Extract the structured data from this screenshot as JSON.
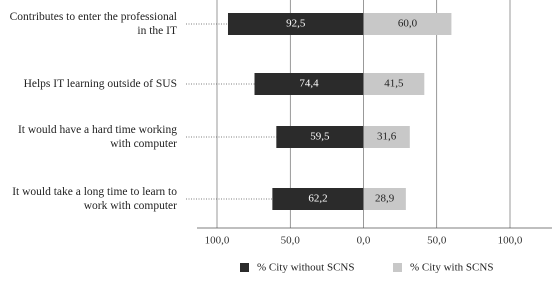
{
  "chart_data": {
    "type": "diverging-bar",
    "categories": [
      "Contributes to enter the professional in the IT",
      "Helps IT learning outside of SUS",
      "It would have a hard time working with computer",
      "It would take a long time to learn to work with computer"
    ],
    "series": [
      {
        "name": "% City without SCNS",
        "color": "#2b2b2b",
        "values": [
          -92.5,
          -74.4,
          -59.5,
          -62.2
        ],
        "value_labels": [
          "92,5",
          "74,4",
          "59,5",
          "62,2"
        ]
      },
      {
        "name": "% City with SCNS",
        "color": "#c8c8c8",
        "values": [
          60.0,
          41.5,
          31.6,
          28.9
        ],
        "value_labels": [
          "60,0",
          "41,5",
          "31,6",
          "28,9"
        ]
      }
    ],
    "xlim": [
      -100,
      100
    ],
    "xticks": [
      {
        "value": -100,
        "label": "100,0"
      },
      {
        "value": -50,
        "label": "50,0"
      },
      {
        "value": 0,
        "label": "0,0"
      },
      {
        "value": 50,
        "label": "50,0"
      },
      {
        "value": 100,
        "label": "100,0"
      }
    ],
    "grid": true
  }
}
